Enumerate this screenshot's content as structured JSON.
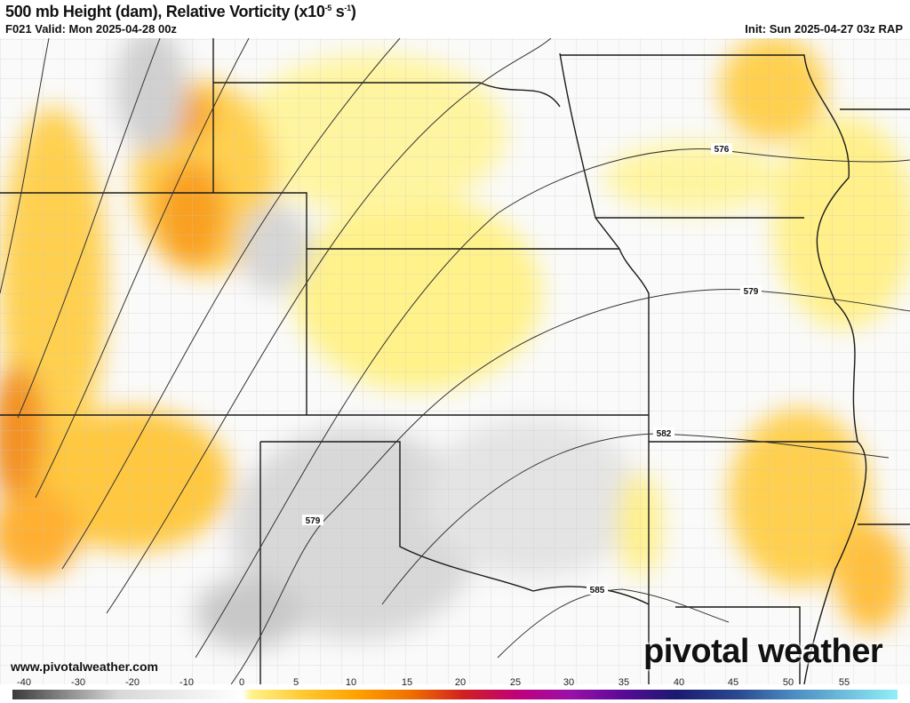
{
  "header": {
    "title_main": "500 mb Height (dam), Relative Vorticity (x10",
    "title_exp1": "-5",
    "title_mid": " s",
    "title_exp2": "-1",
    "title_end": ")",
    "valid": "F021 Valid: Mon 2025-04-28 00z",
    "init": "Init: Sun 2025-04-27 03z RAP"
  },
  "map": {
    "contour_labels": [
      "576",
      "579",
      "579",
      "582",
      "585"
    ],
    "colors": {
      "border": "#1a1a1a",
      "county": "#b8b8b8",
      "contour": "#333333"
    }
  },
  "footer": {
    "website": "www.pivotalweather.com",
    "logo": "pivotal weather"
  },
  "colorbar": {
    "ticks": [
      "-40",
      "-30",
      "-20",
      "-10",
      "0",
      "5",
      "10",
      "15",
      "20",
      "25",
      "30",
      "35",
      "40",
      "45",
      "50",
      "55"
    ],
    "colors": [
      "#3a3a3a",
      "#8a8a8a",
      "#d8d8d8",
      "#ffffff",
      "#fff38a",
      "#ffc830",
      "#ffa000",
      "#f07000",
      "#d02020",
      "#c0007a",
      "#9a10a8",
      "#5a0a98",
      "#1a1a70",
      "#2a4a90",
      "#4a8ac0",
      "#90f0f8"
    ]
  }
}
